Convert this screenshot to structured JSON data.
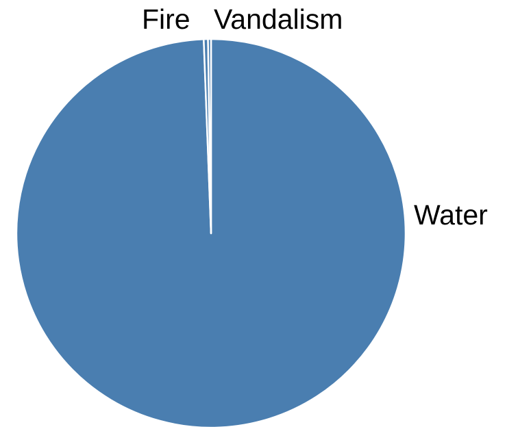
{
  "chart_data": {
    "type": "pie",
    "categories": [
      "Water",
      "Fire",
      "Vandalism"
    ],
    "values": [
      99.4,
      0.35,
      0.25
    ],
    "colors": [
      "#4a7eb0",
      "#4a7eb0",
      "#4a7eb0"
    ],
    "slice_border_color": "#ffffff",
    "labels": [
      "Water",
      "Fire",
      "Vandalism"
    ],
    "legend": "none",
    "start_angle": "top, clockwise (Water first)"
  }
}
